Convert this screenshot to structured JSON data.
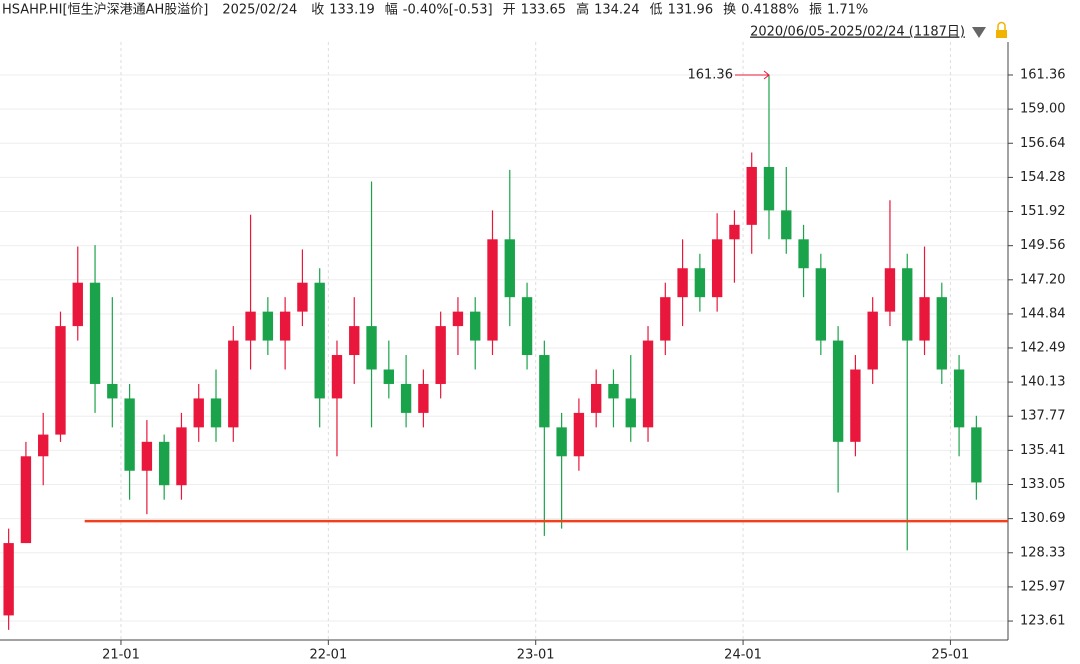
{
  "chart_data": {
    "type": "candlestick",
    "header": [
      {
        "text": "HSAHP.HI[恒生沪深港通AH股溢价]",
        "color": "#222222"
      },
      {
        "text": "2025/02/24",
        "color": "#222222"
      },
      {
        "text": "收",
        "color": "#222222"
      },
      {
        "text": "133.19",
        "color": "#1aa34a"
      },
      {
        "text": "幅",
        "color": "#222222"
      },
      {
        "text": "-0.40%[-0.53]",
        "color": "#1aa34a"
      },
      {
        "text": "开",
        "color": "#222222"
      },
      {
        "text": "133.65",
        "color": "#1aa34a"
      },
      {
        "text": "高",
        "color": "#222222"
      },
      {
        "text": "134.24",
        "color": "#e8173b"
      },
      {
        "text": "低",
        "color": "#222222"
      },
      {
        "text": "131.96",
        "color": "#1aa34a"
      },
      {
        "text": "换",
        "color": "#222222"
      },
      {
        "text": "0.4188%",
        "color": "#222222"
      },
      {
        "text": "振",
        "color": "#222222"
      },
      {
        "text": "1.71%",
        "color": "#222222"
      }
    ],
    "range_label": "2020/06/05-2025/02/24 (1187日)",
    "up_color": "#e8173b",
    "down_color": "#1aa34a",
    "ohlc": [
      [
        124,
        130,
        123,
        129
      ],
      [
        129,
        136,
        129,
        135
      ],
      [
        135,
        138,
        133,
        136.5
      ],
      [
        136.5,
        145,
        136,
        144
      ],
      [
        144,
        149.5,
        143,
        147
      ],
      [
        147,
        149.6,
        138,
        140
      ],
      [
        140,
        146,
        137,
        139
      ],
      [
        139,
        140,
        132,
        134
      ],
      [
        134,
        137.5,
        131,
        136
      ],
      [
        136,
        136.5,
        132,
        133
      ],
      [
        133,
        138,
        132,
        137
      ],
      [
        137,
        140,
        136,
        139
      ],
      [
        139,
        141,
        136,
        137
      ],
      [
        137,
        144,
        136,
        143
      ],
      [
        143,
        151.7,
        141,
        145
      ],
      [
        145,
        146,
        142,
        143
      ],
      [
        143,
        146,
        141,
        145
      ],
      [
        145,
        149.3,
        144,
        147
      ],
      [
        147,
        148,
        137,
        139
      ],
      [
        139,
        143,
        135,
        142
      ],
      [
        142,
        146,
        140,
        144
      ],
      [
        144,
        154,
        137,
        141
      ],
      [
        141,
        143,
        139,
        140
      ],
      [
        140,
        142,
        137,
        138
      ],
      [
        138,
        141,
        137,
        140
      ],
      [
        140,
        145,
        139,
        144
      ],
      [
        144,
        146,
        142,
        145
      ],
      [
        145,
        146,
        141,
        143
      ],
      [
        143,
        152,
        142,
        150
      ],
      [
        150,
        154.8,
        144,
        146
      ],
      [
        146,
        147,
        141,
        142
      ],
      [
        142,
        143,
        129.5,
        137
      ],
      [
        137,
        138,
        130,
        135
      ],
      [
        135,
        139,
        134,
        138
      ],
      [
        138,
        141,
        137,
        140
      ],
      [
        140,
        141,
        137,
        139
      ],
      [
        139,
        142,
        136,
        137
      ],
      [
        137,
        144,
        136,
        143
      ],
      [
        143,
        147,
        142,
        146
      ],
      [
        146,
        150,
        144,
        148
      ],
      [
        148,
        149,
        145,
        146
      ],
      [
        146,
        151.8,
        145,
        150
      ],
      [
        150,
        152,
        147,
        151
      ],
      [
        151,
        156,
        149,
        155
      ],
      [
        155,
        161.36,
        150,
        152
      ],
      [
        152,
        155,
        149,
        150
      ],
      [
        150,
        151,
        146,
        148
      ],
      [
        148,
        149,
        142,
        143
      ],
      [
        143,
        144,
        132.5,
        136
      ],
      [
        136,
        142,
        135,
        141
      ],
      [
        141,
        146,
        140,
        145
      ],
      [
        145,
        152.7,
        144,
        148
      ],
      [
        148,
        149,
        128.5,
        143
      ],
      [
        143,
        149.5,
        142,
        146
      ],
      [
        146,
        147,
        140,
        141
      ],
      [
        141,
        142,
        135,
        137
      ],
      [
        137,
        137.8,
        132,
        133.19
      ]
    ],
    "xlim": [
      0,
      57
    ],
    "xticks": [
      {
        "value": 7,
        "label": "21-01"
      },
      {
        "value": 19,
        "label": "22-01"
      },
      {
        "value": 31,
        "label": "23-01"
      },
      {
        "value": 43,
        "label": "24-01"
      },
      {
        "value": 55,
        "label": "25-01"
      }
    ],
    "ylim": [
      122.3,
      163.64
    ],
    "yticks": [
      161.36,
      {
        "value": 159,
        "label": "159.00"
      },
      156.64,
      154.28,
      151.92,
      149.56,
      {
        "value": 147.2,
        "label": "147.20"
      },
      144.84,
      142.49,
      140.13,
      137.77,
      135.41,
      133.05,
      130.69,
      128.33,
      125.97,
      123.61
    ],
    "grid": true,
    "annotations": [
      {
        "text": "161.36",
        "x": 44,
        "y": 161.36,
        "color": "#e8173b"
      }
    ],
    "hline": {
      "value": 130.52,
      "x_start": 4.9,
      "color": "#f0401e"
    }
  }
}
